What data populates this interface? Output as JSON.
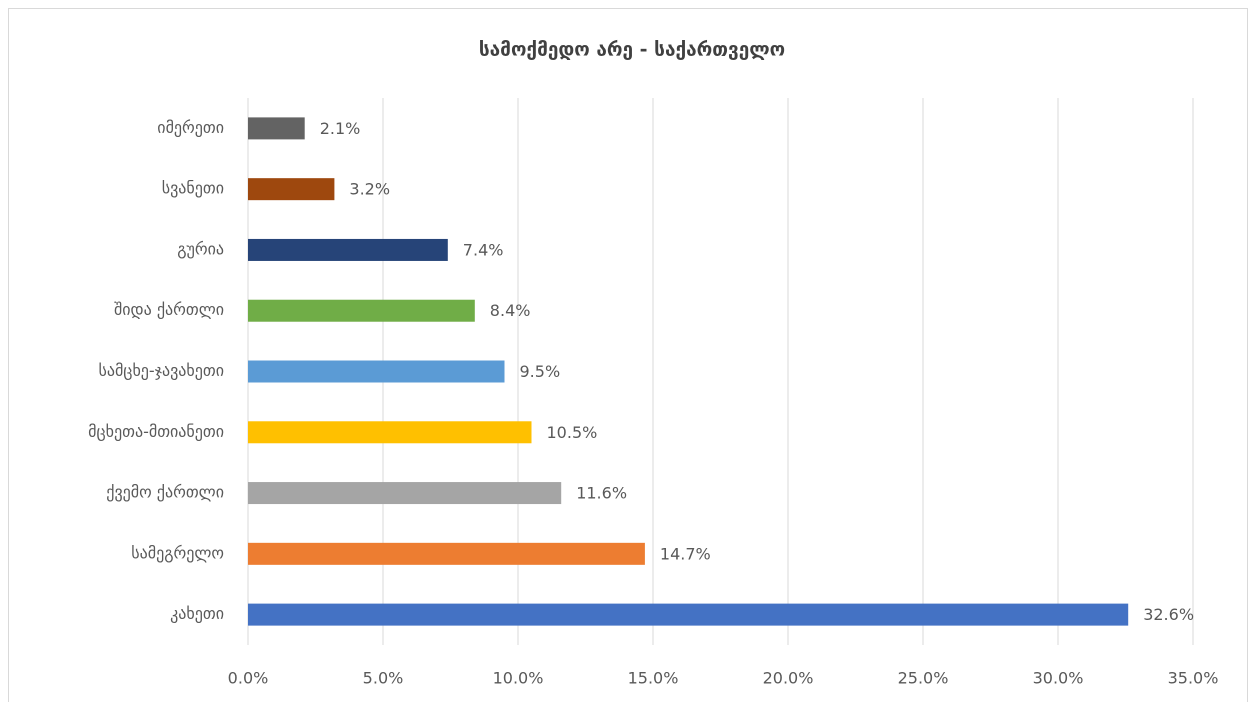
{
  "chart_data": {
    "type": "bar",
    "orientation": "horizontal",
    "title": "სამოქმედო არე - საქართველო",
    "categories": [
      "იმერეთი",
      "სვანეთი",
      "გურია",
      "შიდა ქართლი",
      "სამცხე-ჯავახეთი",
      "მცხეთა-მთიანეთი",
      "ქვემო ქართლი",
      "სამეგრელო",
      "კახეთი"
    ],
    "values": [
      2.1,
      3.2,
      7.4,
      8.4,
      9.5,
      10.5,
      11.6,
      14.7,
      32.6
    ],
    "value_labels": [
      "2.1%",
      "3.2%",
      "7.4%",
      "8.4%",
      "9.5%",
      "10.5%",
      "11.6%",
      "14.7%",
      "32.6%"
    ],
    "colors": [
      "#636363",
      "#9e480e",
      "#264478",
      "#70ad47",
      "#5b9bd5",
      "#ffc000",
      "#a5a5a5",
      "#ed7d31",
      "#4472c4"
    ],
    "xlim": [
      0,
      35
    ],
    "xticks": [
      {
        "value": 0,
        "label": "0.0%"
      },
      {
        "value": 5,
        "label": "5.0%"
      },
      {
        "value": 10,
        "label": "10.0%"
      },
      {
        "value": 15,
        "label": "15.0%"
      },
      {
        "value": 20,
        "label": "20.0%"
      },
      {
        "value": 25,
        "label": "25.0%"
      },
      {
        "value": 30,
        "label": "30.0%"
      },
      {
        "value": 35,
        "label": "35.0%"
      }
    ],
    "grid": true
  }
}
